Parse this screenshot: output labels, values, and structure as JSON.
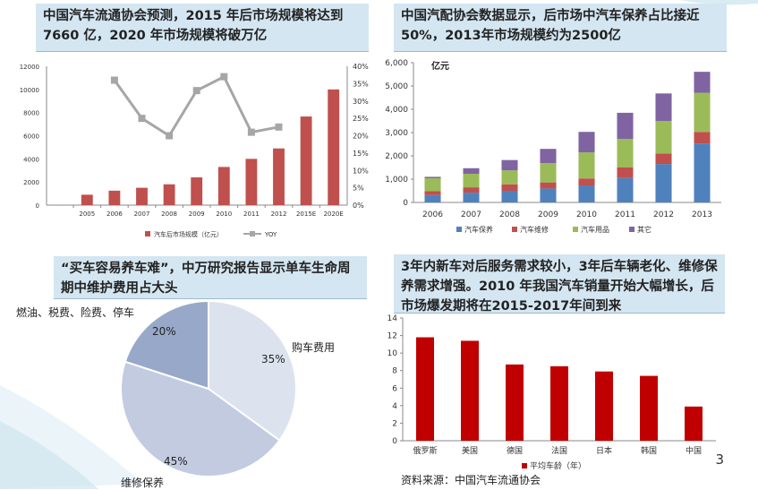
{
  "page_number": "3",
  "source_text": "资料来源：中国汽车流通协会",
  "captions": {
    "top_left": "中国汽车流通协会预测，2015 年后市场规模将达到7660 亿，2020 年市场规模将破万亿",
    "top_right": "中国汽配协会数据显示，后市场中汽车保养占比接近50%，2013年市场规模约为2500亿",
    "bottom_left": "“买车容易养车难”，中万研究报告显示单车生命周期中维护费用占大头",
    "bottom_right": "3年内新车对后服务需求较小，3年后车辆老化、维修保养需求增强。2010 年我国汽车销量开始大幅增长，后市场爆发期将在2015-2017年间到来"
  },
  "colors": {
    "bar_red": "#c0504d",
    "line_gray": "#a6a6a6",
    "maintenance_blue": "#4f81bd",
    "repair_red": "#c0504d",
    "supplies_green": "#9bbb59",
    "other_purple": "#8064a2",
    "pie_light": "#dde3ee",
    "pie_mid": "#c2cbe0",
    "pie_dark": "#98a8c8",
    "age_bar": "#c00000"
  },
  "chart_data": [
    {
      "type": "bar",
      "categories": [
        "2005",
        "2006",
        "2007",
        "2008",
        "2009",
        "2010",
        "2011",
        "2012",
        "2015E",
        "2020E"
      ],
      "series": [
        {
          "name": "汽车后市场规模（亿元）",
          "values": [
            900,
            1250,
            1500,
            1800,
            2400,
            3300,
            4000,
            4900,
            7660,
            10000
          ]
        },
        {
          "name": "YOY",
          "values": [
            null,
            0.36,
            0.25,
            0.2,
            0.33,
            0.37,
            0.21,
            0.225,
            null,
            null
          ]
        }
      ],
      "ylim": [
        0,
        12000
      ],
      "y_ticks": [
        "0",
        "2000",
        "4000",
        "6000",
        "8000",
        "10000",
        "12000"
      ],
      "y2lim": [
        0,
        0.4
      ],
      "y2_ticks": [
        "0%",
        "5%",
        "10%",
        "15%",
        "20%",
        "25%",
        "30%",
        "35%",
        "40%"
      ],
      "legend": "bottom"
    },
    {
      "type": "bar",
      "stacked": true,
      "categories": [
        "2006",
        "2007",
        "2008",
        "2009",
        "2010",
        "2011",
        "2012",
        "2013"
      ],
      "series": [
        {
          "name": "汽车保养",
          "values": [
            320,
            420,
            500,
            600,
            730,
            1050,
            1650,
            2530
          ]
        },
        {
          "name": "汽车维修",
          "values": [
            160,
            230,
            280,
            260,
            300,
            450,
            450,
            500
          ]
        },
        {
          "name": "汽车用品",
          "values": [
            560,
            580,
            600,
            830,
            1120,
            1230,
            1400,
            1680
          ]
        },
        {
          "name": "其它",
          "values": [
            60,
            240,
            440,
            610,
            880,
            1120,
            1180,
            900
          ]
        }
      ],
      "ylabel": "亿元",
      "ylim": [
        0,
        6000
      ],
      "y_ticks": [
        "0",
        "1,000",
        "2,000",
        "3,000",
        "4,000",
        "5,000",
        "6,000"
      ],
      "legend": "bottom"
    },
    {
      "type": "pie",
      "slices": [
        {
          "label": "购车费用",
          "value": 35,
          "pct": "35%"
        },
        {
          "label": "维修保养",
          "value": 45,
          "pct": "45%"
        },
        {
          "label": "燃油、税费、险费、停车",
          "value": 20,
          "pct": "20%"
        }
      ]
    },
    {
      "type": "bar",
      "categories": [
        "俄罗斯",
        "美国",
        "德国",
        "法国",
        "日本",
        "韩国",
        "中国"
      ],
      "series": [
        {
          "name": "平均车龄（年）",
          "values": [
            11.8,
            11.4,
            8.7,
            8.5,
            7.9,
            7.4,
            3.9
          ]
        }
      ],
      "ylim": [
        0,
        14
      ],
      "y_ticks": [
        "0",
        "2",
        "4",
        "6",
        "8",
        "10",
        "12",
        "14"
      ],
      "legend": "bottom"
    }
  ]
}
